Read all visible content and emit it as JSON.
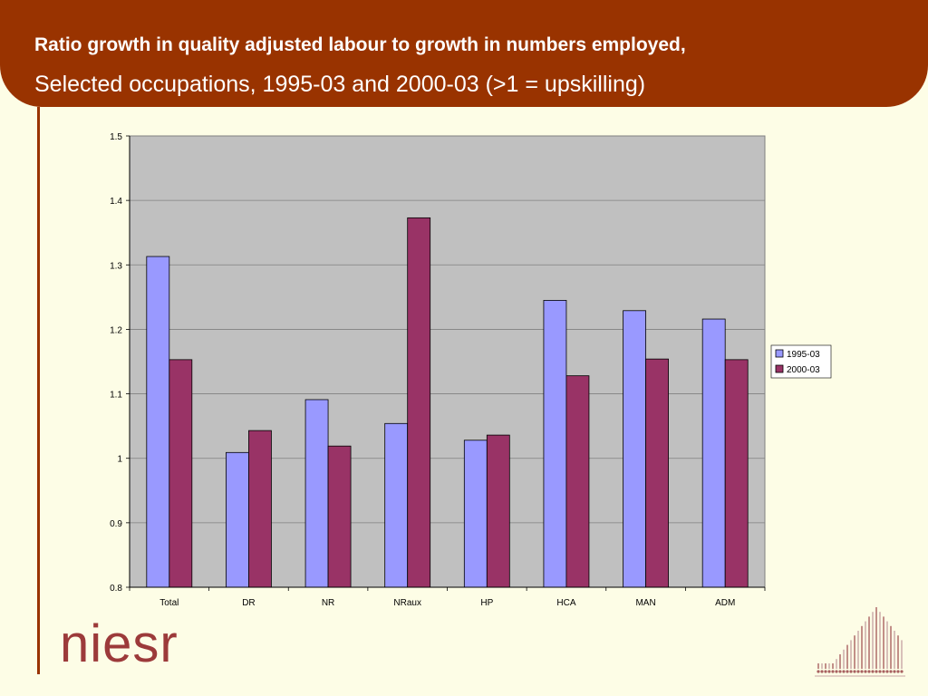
{
  "slide": {
    "title": "Ratio growth in quality adjusted labour to growth in numbers employed,",
    "subtitle": "Selected occupations, 1995-03 and 2000-03 (>1 = upskilling)",
    "logo_text": "niesr"
  },
  "colors": {
    "header": "#993300",
    "plot_background": "#c0c0c0",
    "series_1995": "#9999ff",
    "series_2000": "#993366",
    "logo": "#9c3a3a"
  },
  "chart_data": {
    "type": "bar",
    "categories": [
      "Total",
      "DR",
      "NR",
      "NRaux",
      "HP",
      "HCA",
      "MAN",
      "ADM"
    ],
    "series": [
      {
        "name": "1995-03",
        "values": [
          1.313,
          1.009,
          1.091,
          1.054,
          1.028,
          1.245,
          1.229,
          1.216
        ]
      },
      {
        "name": "2000-03",
        "values": [
          1.153,
          1.043,
          1.019,
          1.373,
          1.036,
          1.128,
          1.154,
          1.153
        ]
      }
    ],
    "yticks": [
      "1.5",
      "1.4",
      "1.3",
      "1.2",
      "1.1",
      "1",
      "0.9",
      "0.8"
    ],
    "ylim": [
      0.8,
      1.5
    ],
    "grid": true,
    "legend": "right"
  }
}
